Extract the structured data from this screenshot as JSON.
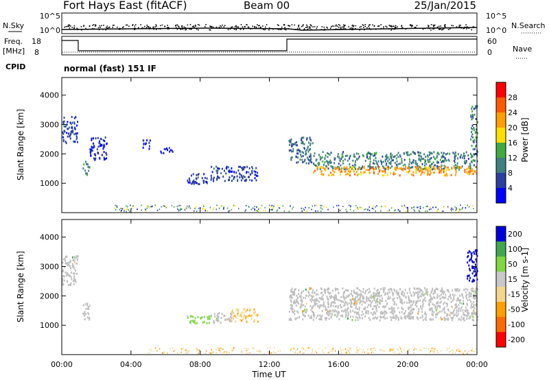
{
  "header": {
    "station": "Fort Hays East (fitACF)",
    "beam": "Beam 00",
    "date": "25/Jan/2015"
  },
  "strip": {
    "nsky_label": "N.Sky",
    "nsearch_label": "N.Search",
    "nsky_ticks": [
      "10^5",
      "10^0"
    ],
    "nsearch_ticks": [
      "10^5",
      "10^0"
    ],
    "freq_label": "Freq.",
    "freq_unit": "[MHz]",
    "freq_ticks": [
      "18",
      "8"
    ],
    "nave_label": "Nave",
    "nave_ticks": [
      "60",
      "0"
    ],
    "cpid_label": "CPID",
    "cpid_text": "normal (fast) 151 IF"
  },
  "colors": {
    "power": [
      "#0000ff",
      "#2a3f9f",
      "#3f7f7f",
      "#3faa3f",
      "#ffdf00",
      "#ff9f00",
      "#ff5a00",
      "#ff0000"
    ],
    "velocity": [
      "#ff0000",
      "#ff6a00",
      "#ff9f00",
      "#f5d58a",
      "#c8c8c8",
      "#80d840",
      "#3fa84f",
      "#0000dd"
    ],
    "scatter": "#bfbfbf"
  },
  "chart_data": [
    {
      "type": "heatmap",
      "panel": "power",
      "ylabel": "Slant Range [km]",
      "y_ticks": [
        "4000",
        "3000",
        "2000",
        "1000"
      ],
      "y_tick_values": [
        4000,
        3000,
        2000,
        1000
      ],
      "ylim": [
        0,
        4600
      ],
      "colorbar_label": "Power [dB]",
      "colorbar_ticks": [
        "28",
        "24",
        "20",
        "16",
        "12",
        "8",
        "4"
      ],
      "colorbar_levels": [
        0,
        4,
        8,
        12,
        16,
        20,
        24,
        28,
        32
      ],
      "regions": [
        {
          "x": [
            0.0,
            0.9
          ],
          "y": [
            2400,
            3300
          ],
          "level": 6
        },
        {
          "x": [
            1.2,
            1.6
          ],
          "y": [
            1300,
            1800
          ],
          "level": 12
        },
        {
          "x": [
            1.6,
            2.6
          ],
          "y": [
            1800,
            2600
          ],
          "level": 4
        },
        {
          "x": [
            4.6,
            5.1
          ],
          "y": [
            2200,
            2500
          ],
          "level": 4
        },
        {
          "x": [
            5.6,
            6.4
          ],
          "y": [
            2050,
            2250
          ],
          "level": 4
        },
        {
          "x": [
            7.2,
            8.6
          ],
          "y": [
            1000,
            1350
          ],
          "level": 6
        },
        {
          "x": [
            8.6,
            11.3
          ],
          "y": [
            1100,
            1600
          ],
          "level": 6
        },
        {
          "x": [
            13.1,
            14.5
          ],
          "y": [
            1700,
            2600
          ],
          "level": 9
        },
        {
          "x": [
            14.5,
            24.0
          ],
          "y": [
            1500,
            2100
          ],
          "level": 10
        },
        {
          "x": [
            14.5,
            24.0
          ],
          "y": [
            1300,
            1600
          ],
          "level": 22
        },
        {
          "x": [
            23.6,
            24.0
          ],
          "y": [
            2000,
            3700
          ],
          "level": 10
        }
      ]
    },
    {
      "type": "heatmap",
      "panel": "velocity",
      "ylabel": "Slant Range [km]",
      "y_ticks": [
        "4000",
        "3000",
        "2000",
        "1000"
      ],
      "y_tick_values": [
        4000,
        3000,
        2000,
        1000
      ],
      "ylim": [
        0,
        4600
      ],
      "colorbar_label": "Velocity [m s-1]",
      "colorbar_ticks": [
        "200",
        "100",
        "50",
        "15",
        "-15",
        "-50",
        "-100",
        "-200"
      ],
      "colorbar_levels": [
        -250,
        -200,
        -100,
        -50,
        -15,
        15,
        50,
        100,
        200,
        250
      ],
      "xlabel": "Time UT",
      "x_ticks": [
        "00:00",
        "04:00",
        "08:00",
        "12:00",
        "16:00",
        "20:00",
        "00:00"
      ],
      "x_tick_hours": [
        0,
        4,
        8,
        12,
        16,
        20,
        24
      ],
      "xlim": [
        0,
        24
      ],
      "regions": [
        {
          "x": [
            0.0,
            0.9
          ],
          "y": [
            2400,
            3400
          ],
          "ground_scatter": true
        },
        {
          "x": [
            1.2,
            1.6
          ],
          "y": [
            1200,
            1800
          ],
          "ground_scatter": true
        },
        {
          "x": [
            7.2,
            8.6
          ],
          "y": [
            1100,
            1350
          ],
          "velocity": 30
        },
        {
          "x": [
            8.6,
            9.8
          ],
          "y": [
            1100,
            1450
          ],
          "ground_scatter": true
        },
        {
          "x": [
            9.8,
            11.3
          ],
          "y": [
            1150,
            1600
          ],
          "velocity": -40
        },
        {
          "x": [
            13.1,
            24.0
          ],
          "y": [
            1200,
            2300
          ],
          "ground_scatter": true
        },
        {
          "x": [
            23.4,
            24.0
          ],
          "y": [
            2500,
            3600
          ],
          "velocity": 220
        }
      ]
    }
  ]
}
